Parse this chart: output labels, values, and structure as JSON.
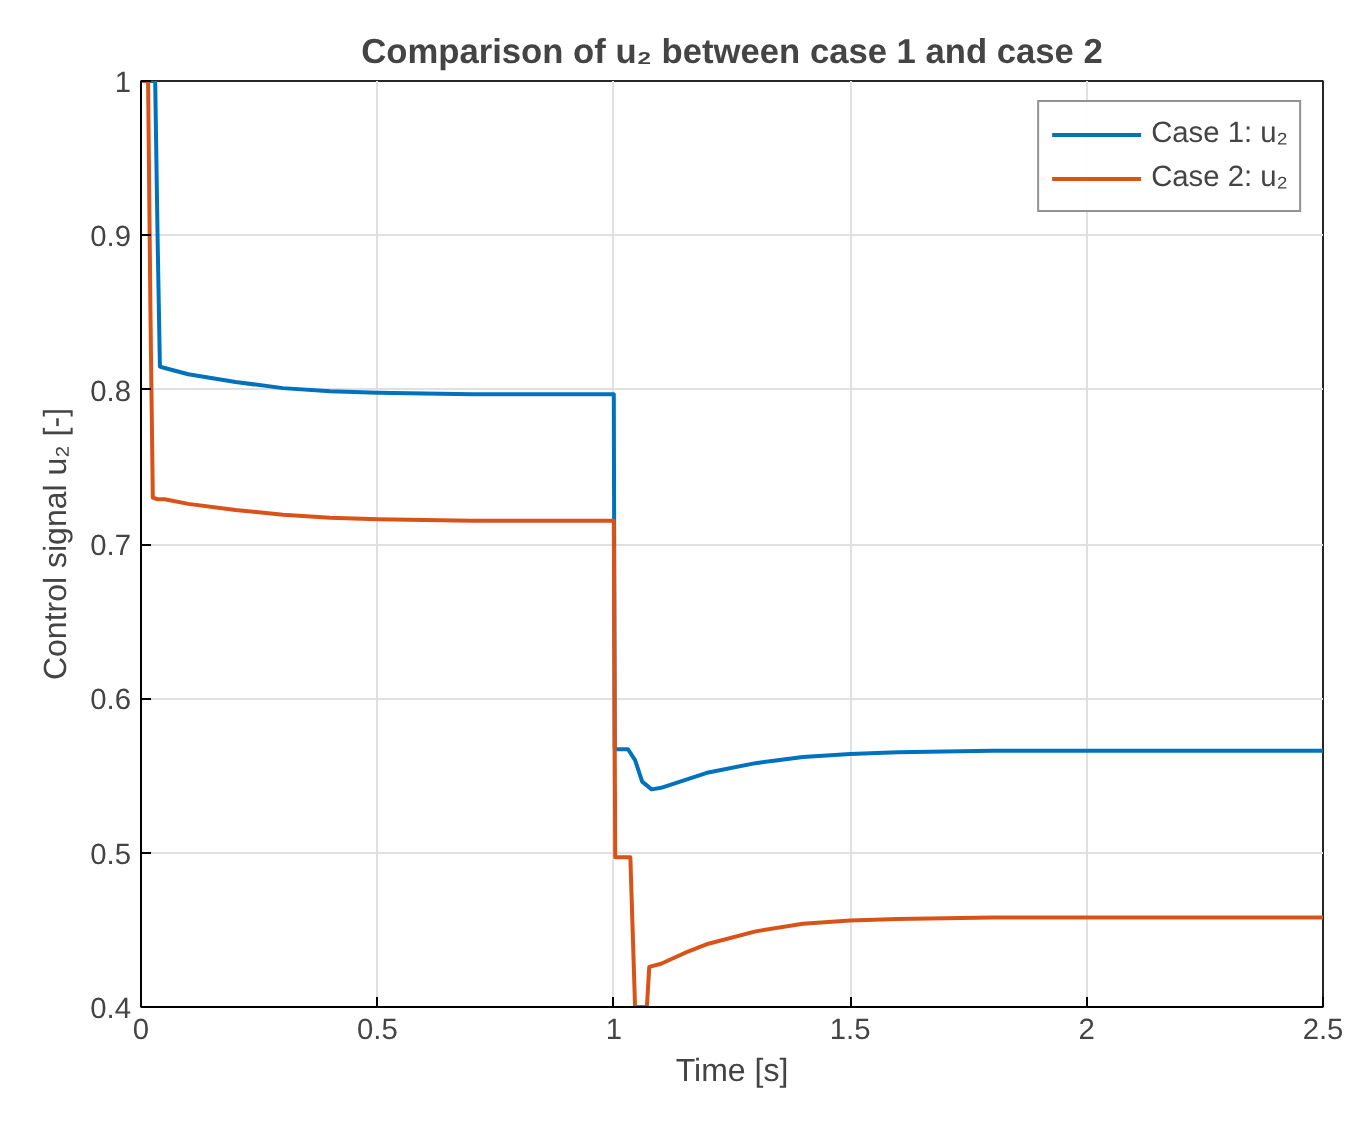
{
  "chart_data": {
    "type": "line",
    "title": "Comparison of u₂ between case 1 and case 2",
    "xlabel": "Time [s]",
    "ylabel": "Control signal u₂ [-]",
    "xlim": [
      0,
      2.5
    ],
    "ylim": [
      0.4,
      1
    ],
    "xticks": [
      0,
      0.5,
      1,
      1.5,
      2,
      2.5
    ],
    "yticks": [
      0.4,
      0.5,
      0.6,
      0.7,
      0.8,
      0.9,
      1
    ],
    "grid": true,
    "legend": "top right",
    "marker": "none",
    "line_style": "solid",
    "series": [
      {
        "name": "Case 1: u₂",
        "color": "#0072bd",
        "x": [
          0,
          0.03,
          0.035,
          0.04,
          0.05,
          0.1,
          0.2,
          0.3,
          0.4,
          0.5,
          0.7,
          0.9,
          1.0,
          1.002,
          1.03,
          1.045,
          1.06,
          1.08,
          1.1,
          1.15,
          1.2,
          1.3,
          1.4,
          1.5,
          1.6,
          1.8,
          2.0,
          2.25,
          2.5
        ],
        "values": [
          1,
          1,
          0.9,
          0.815,
          0.814,
          0.81,
          0.805,
          0.801,
          0.799,
          0.798,
          0.797,
          0.797,
          0.797,
          0.567,
          0.567,
          0.56,
          0.546,
          0.541,
          0.542,
          0.547,
          0.552,
          0.558,
          0.562,
          0.564,
          0.565,
          0.566,
          0.566,
          0.566,
          0.566
        ]
      },
      {
        "name": "Case 2: u₂",
        "color": "#d95319",
        "x": [
          0,
          0.015,
          0.02,
          0.025,
          0.035,
          0.05,
          0.1,
          0.2,
          0.3,
          0.4,
          0.5,
          0.7,
          0.9,
          1.0,
          1.003,
          1.035,
          1.045,
          1.07,
          1.075,
          1.1,
          1.15,
          1.2,
          1.3,
          1.4,
          1.5,
          1.6,
          1.8,
          2.0,
          2.25,
          2.5
        ],
        "values": [
          1,
          1,
          0.85,
          0.73,
          0.729,
          0.729,
          0.726,
          0.722,
          0.719,
          0.717,
          0.716,
          0.715,
          0.715,
          0.715,
          0.497,
          0.497,
          0.4,
          0.4,
          0.426,
          0.428,
          0.435,
          0.441,
          0.449,
          0.454,
          0.456,
          0.457,
          0.458,
          0.458,
          0.458,
          0.458
        ]
      }
    ]
  }
}
